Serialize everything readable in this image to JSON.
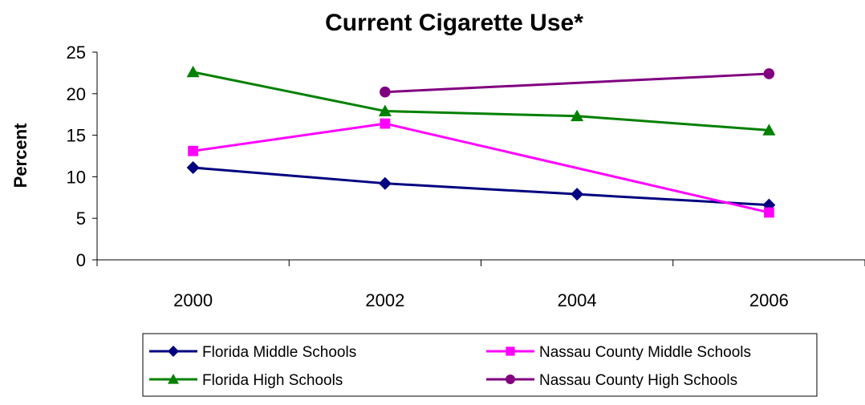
{
  "chart_data": {
    "type": "line",
    "title": "Current Cigarette Use*",
    "xlabel": "",
    "ylabel": "Percent",
    "categories": [
      "2000",
      "2002",
      "2004",
      "2006"
    ],
    "ylim": [
      0,
      25
    ],
    "yticks": [
      0,
      5,
      10,
      15,
      20,
      25
    ],
    "grid": false,
    "legend_position": "bottom",
    "series": [
      {
        "name": "Florida Middle Schools",
        "color": "#000080",
        "marker": "diamond",
        "values": [
          11.1,
          9.2,
          7.9,
          6.6
        ]
      },
      {
        "name": "Nassau County Middle Schools",
        "color": "#FF00FF",
        "marker": "square",
        "values": [
          13.1,
          16.4,
          null,
          5.7
        ]
      },
      {
        "name": "Florida High Schools",
        "color": "#008000",
        "marker": "triangle",
        "values": [
          22.6,
          17.9,
          17.3,
          15.6
        ]
      },
      {
        "name": "Nassau County High Schools",
        "color": "#800080",
        "marker": "circle",
        "values": [
          null,
          20.2,
          null,
          22.4
        ]
      }
    ]
  }
}
